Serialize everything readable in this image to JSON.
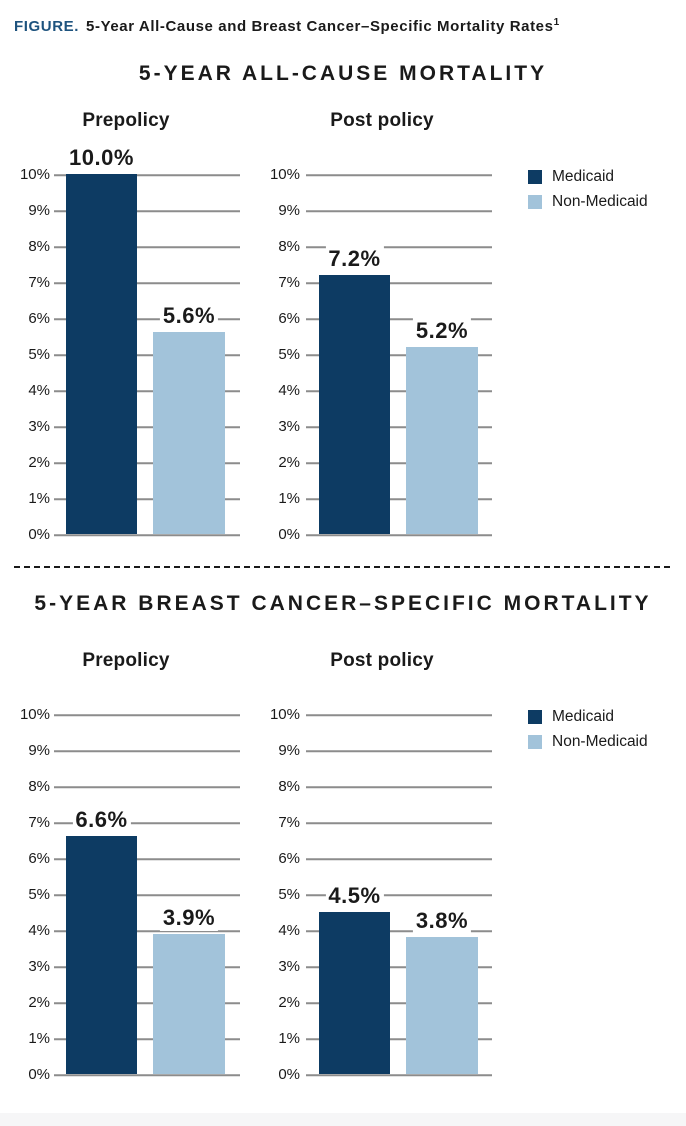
{
  "header": {
    "figure_label": "FIGURE.",
    "title": "5-Year All-Cause and Breast Cancer–Specific Mortality Rates",
    "footnote_marker": "1"
  },
  "colors": {
    "figure_label_blue": "#1e537e",
    "text": "#1a1a1a",
    "gridline": "#8c8c8c",
    "footer_band": "#f6f6f7",
    "medicaid": "#0d3b63",
    "non_medicaid": "#a2c3da"
  },
  "chart_data": [
    {
      "type": "bar",
      "title": "5-YEAR ALL-CAUSE MORTALITY",
      "xlabel": "",
      "ylabel": "",
      "ylim": [
        0,
        10
      ],
      "yticks": [
        "0%",
        "1%",
        "2%",
        "3%",
        "4%",
        "5%",
        "6%",
        "7%",
        "8%",
        "9%",
        "10%"
      ],
      "grid": true,
      "legend_position": "right",
      "legend": [
        {
          "label": "Medicaid",
          "color": "#0d3b63"
        },
        {
          "label": "Non-Medicaid",
          "color": "#a2c3da"
        }
      ],
      "panels": [
        {
          "label": "Prepolicy",
          "series": [
            {
              "name": "Medicaid",
              "value": 10.0,
              "value_label": "10.0%"
            },
            {
              "name": "Non-Medicaid",
              "value": 5.6,
              "value_label": "5.6%"
            }
          ]
        },
        {
          "label": "Post policy",
          "series": [
            {
              "name": "Medicaid",
              "value": 7.2,
              "value_label": "7.2%"
            },
            {
              "name": "Non-Medicaid",
              "value": 5.2,
              "value_label": "5.2%"
            }
          ]
        }
      ]
    },
    {
      "type": "bar",
      "title": "5-YEAR BREAST CANCER–SPECIFIC MORTALITY",
      "xlabel": "",
      "ylabel": "",
      "ylim": [
        0,
        10
      ],
      "yticks": [
        "0%",
        "1%",
        "2%",
        "3%",
        "4%",
        "5%",
        "6%",
        "7%",
        "8%",
        "9%",
        "10%"
      ],
      "grid": true,
      "legend_position": "right",
      "legend": [
        {
          "label": "Medicaid",
          "color": "#0d3b63"
        },
        {
          "label": "Non-Medicaid",
          "color": "#a2c3da"
        }
      ],
      "panels": [
        {
          "label": "Prepolicy",
          "series": [
            {
              "name": "Medicaid",
              "value": 6.6,
              "value_label": "6.6%"
            },
            {
              "name": "Non-Medicaid",
              "value": 3.9,
              "value_label": "3.9%"
            }
          ]
        },
        {
          "label": "Post policy",
          "series": [
            {
              "name": "Medicaid",
              "value": 4.5,
              "value_label": "4.5%"
            },
            {
              "name": "Non-Medicaid",
              "value": 3.8,
              "value_label": "3.8%"
            }
          ]
        }
      ]
    }
  ]
}
